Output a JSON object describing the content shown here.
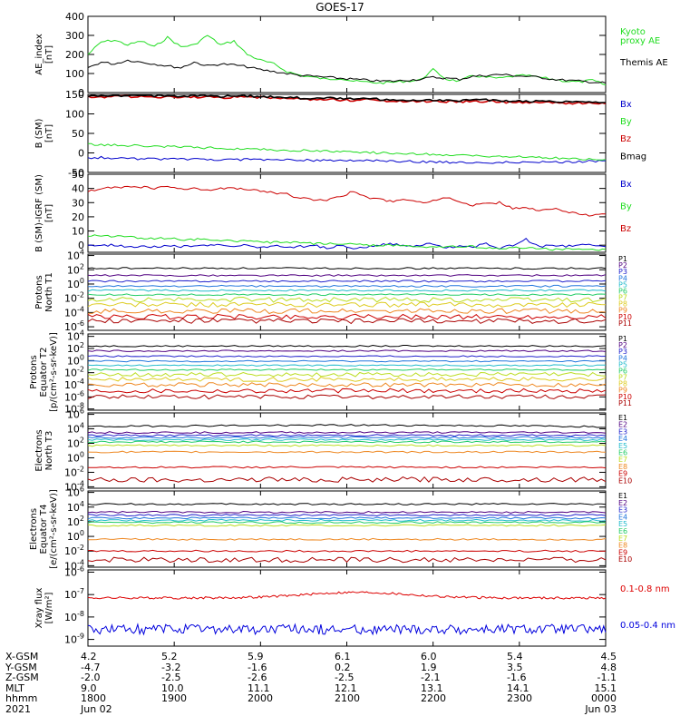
{
  "title": "GOES-17",
  "colors": {
    "axis": "#000000",
    "black": "#000000",
    "green": "#22dd22",
    "blue": "#0000cc",
    "red": "#cc0000",
    "xray_red": "#dd0000",
    "xray_blue": "#0000dd"
  },
  "chart_data": [
    {
      "type": "line",
      "id": "ae",
      "ylabel": [
        "AE_index",
        "[nT]"
      ],
      "ylim": [
        0,
        400
      ],
      "yticks": [
        "400",
        "300",
        "200",
        "100",
        "0"
      ],
      "series": [
        {
          "name": "Kyoto proxy AE",
          "label_lines": [
            "Kyoto",
            "proxy AE"
          ],
          "color": "#22dd22",
          "values": [
            200,
            265,
            275,
            250,
            270,
            240,
            290,
            240,
            250,
            300,
            250,
            270,
            200,
            170,
            150,
            110,
            90,
            80,
            70,
            75,
            60,
            55,
            50,
            55,
            60,
            65,
            120,
            70,
            60,
            90,
            80,
            75,
            85,
            90,
            80,
            70,
            60,
            55,
            65,
            40
          ]
        },
        {
          "name": "Themis AE",
          "label_lines": [
            "Themis AE"
          ],
          "color": "#000000",
          "values": [
            130,
            160,
            150,
            170,
            160,
            150,
            140,
            130,
            160,
            140,
            150,
            145,
            135,
            120,
            110,
            100,
            90,
            85,
            80,
            75,
            70,
            65,
            60,
            60,
            65,
            70,
            80,
            75,
            70,
            85,
            90,
            95,
            90,
            85,
            80,
            70,
            65,
            60,
            55,
            50
          ]
        }
      ]
    },
    {
      "type": "line",
      "id": "b_sm",
      "ylabel": [
        "B (SM)",
        "[nT]"
      ],
      "ylim": [
        -50,
        150
      ],
      "yticks": [
        "150",
        "100",
        "50",
        "0",
        "-50"
      ],
      "series": [
        {
          "name": "Bx",
          "color": "#0000cc",
          "values": [
            -12,
            -12,
            -13,
            -14,
            -15,
            -15,
            -16,
            -16,
            -16,
            -17,
            -17,
            -17,
            -17,
            -18,
            -18,
            -18,
            -18,
            -19,
            -19,
            -19,
            -20,
            -20,
            -20,
            -21,
            -22,
            -22,
            -23,
            -24,
            -23,
            -25,
            -24,
            -24,
            -23,
            -24,
            -23,
            -23,
            -23,
            -22,
            -21,
            -20
          ]
        },
        {
          "name": "By",
          "color": "#22dd22",
          "values": [
            22,
            21,
            20,
            19,
            18,
            17,
            16,
            15,
            14,
            13,
            12,
            11,
            10,
            9,
            8,
            7,
            6,
            5,
            4,
            3,
            2,
            1,
            0,
            -1,
            -2,
            -3,
            -4,
            -5,
            -6,
            -7,
            -8,
            -9,
            -10,
            -11,
            -12,
            -13,
            -14,
            -15,
            -16,
            -17
          ]
        },
        {
          "name": "Bz",
          "color": "#cc0000",
          "values": [
            143,
            144,
            144,
            145,
            145,
            144,
            144,
            143,
            143,
            143,
            142,
            143,
            143,
            142,
            141,
            140,
            138,
            137,
            137,
            136,
            135,
            137,
            134,
            133,
            132,
            133,
            132,
            132,
            131,
            132,
            132,
            131,
            130,
            130,
            130,
            129,
            128,
            128,
            127,
            126
          ]
        },
        {
          "name": "Bmag",
          "color": "#000000",
          "values": [
            146,
            147,
            147,
            148,
            148,
            147,
            147,
            146,
            146,
            146,
            145,
            146,
            146,
            145,
            144,
            143,
            141,
            140,
            140,
            139,
            138,
            140,
            137,
            136,
            135,
            136,
            135,
            135,
            134,
            135,
            135,
            134,
            133,
            133,
            133,
            132,
            131,
            131,
            130,
            129
          ]
        }
      ]
    },
    {
      "type": "line",
      "id": "b_igrf",
      "ylabel": [
        "B (SM)-IGRF (SM)",
        "[nT]"
      ],
      "ylim": [
        -5,
        50
      ],
      "yticks": [
        "50",
        "40",
        "30",
        "20",
        "10",
        "0"
      ],
      "series": [
        {
          "name": "Bx",
          "color": "#0000cc",
          "values": [
            0,
            0,
            0,
            -1,
            -1,
            -1,
            0,
            -1,
            -1,
            0,
            0,
            -1,
            0,
            -2,
            0,
            -2,
            -1,
            0,
            -2,
            0,
            -2,
            -1,
            0,
            1,
            -1,
            0,
            1,
            -2,
            0,
            -1,
            1,
            -2,
            0,
            4,
            -1,
            0,
            -1,
            0,
            0,
            -1
          ]
        },
        {
          "name": "By",
          "color": "#22dd22",
          "values": [
            7,
            7,
            6,
            6,
            5,
            5,
            5,
            4,
            4,
            4,
            3,
            3,
            3,
            2,
            2,
            2,
            2,
            1,
            1,
            1,
            1,
            0,
            0,
            0,
            0,
            -1,
            -1,
            -1,
            -1,
            -1,
            -2,
            -2,
            -2,
            -2,
            -2,
            -3,
            -3,
            -3,
            -3,
            -3
          ]
        },
        {
          "name": "Bz",
          "color": "#cc0000",
          "values": [
            38,
            40,
            41,
            41,
            41,
            40,
            41,
            40,
            40,
            39,
            40,
            40,
            39,
            38,
            37,
            36,
            33,
            32,
            32,
            34,
            38,
            34,
            32,
            31,
            32,
            30,
            31,
            34,
            30,
            28,
            29,
            30,
            26,
            27,
            24,
            26,
            24,
            22,
            21,
            22
          ]
        }
      ]
    },
    {
      "type": "line",
      "id": "protons_t1",
      "ylabel": [
        "Protons",
        "North T1"
      ],
      "ylog": true,
      "yticks": [
        "10^4",
        "10^2",
        "10^0",
        "10^-2",
        "10^-4",
        "10^-6"
      ],
      "series": [
        {
          "name": "P1",
          "color": "#000000",
          "level": 2.2
        },
        {
          "name": "P2",
          "color": "#500080",
          "level": 1.2
        },
        {
          "name": "P3",
          "color": "#2222cc",
          "level": 0.4
        },
        {
          "name": "P4",
          "color": "#2277dd",
          "level": -0.3
        },
        {
          "name": "P5",
          "color": "#22bbcc",
          "level": -0.9
        },
        {
          "name": "P6",
          "color": "#22cc66",
          "level": -1.5
        },
        {
          "name": "P7",
          "color": "#bbdd22",
          "level": -2.2
        },
        {
          "name": "P8",
          "color": "#ddcc22",
          "level": -2.9
        },
        {
          "name": "P9",
          "color": "#ee8822",
          "level": -3.8
        },
        {
          "name": "P10",
          "color": "#cc0000",
          "level": -4.6
        },
        {
          "name": "P11",
          "color": "#aa0000",
          "level": -5.2
        }
      ]
    },
    {
      "type": "line",
      "id": "protons_t2",
      "ylabel": [
        "Protons",
        "Equator T2",
        "[p/(cm²-s-sr-keV)]"
      ],
      "ylog": true,
      "yticks": [
        "10^4",
        "10^2",
        "10^0",
        "10^-2",
        "10^-4",
        "10^-6",
        "10^-8"
      ],
      "series": [
        {
          "name": "P1",
          "color": "#000000",
          "level": 2.4
        },
        {
          "name": "P2",
          "color": "#500080",
          "level": 1.6
        },
        {
          "name": "P3",
          "color": "#2222cc",
          "level": 0.7
        },
        {
          "name": "P4",
          "color": "#2277dd",
          "level": -0.1
        },
        {
          "name": "P5",
          "color": "#22bbcc",
          "level": -0.8
        },
        {
          "name": "P6",
          "color": "#22cc66",
          "level": -1.5
        },
        {
          "name": "P7",
          "color": "#bbdd22",
          "level": -2.3
        },
        {
          "name": "P8",
          "color": "#ddcc22",
          "level": -3.1
        },
        {
          "name": "P9",
          "color": "#ee8822",
          "level": -4.0
        },
        {
          "name": "P10",
          "color": "#cc0000",
          "level": -5.0
        },
        {
          "name": "P11",
          "color": "#aa0000",
          "level": -6.0
        }
      ]
    },
    {
      "type": "line",
      "id": "electrons_t3",
      "ylabel": [
        "Electrons",
        "North T3"
      ],
      "ylog": true,
      "yticks": [
        "10^6",
        "10^4",
        "10^2",
        "10^0",
        "10^-2",
        "10^-4"
      ],
      "series": [
        {
          "name": "E1",
          "color": "#000000",
          "level": 4.3
        },
        {
          "name": "E2",
          "color": "#500080",
          "level": 3.5
        },
        {
          "name": "E3",
          "color": "#2222cc",
          "level": 3.1
        },
        {
          "name": "E4",
          "color": "#2277dd",
          "level": 2.8
        },
        {
          "name": "E5",
          "color": "#22bbcc",
          "level": 2.5
        },
        {
          "name": "E6",
          "color": "#22cc66",
          "level": 2.2
        },
        {
          "name": "E7",
          "color": "#bbdd22",
          "level": 1.7
        },
        {
          "name": "E8",
          "color": "#ee8822",
          "level": 0.8
        },
        {
          "name": "E9",
          "color": "#cc0000",
          "level": -1.3
        },
        {
          "name": "E10",
          "color": "#aa0000",
          "level": -3.0
        }
      ]
    },
    {
      "type": "line",
      "id": "electrons_t4",
      "ylabel": [
        "Electrons",
        "Equator T4",
        "[e/(cm²-s-sr-keV)]"
      ],
      "ylog": true,
      "yticks": [
        "10^6",
        "10^4",
        "10^2",
        "10^0",
        "10^-2",
        "10^-4"
      ],
      "series": [
        {
          "name": "E1",
          "color": "#000000",
          "level": 4.4
        },
        {
          "name": "E2",
          "color": "#500080",
          "level": 3.3
        },
        {
          "name": "E3",
          "color": "#2222cc",
          "level": 2.9
        },
        {
          "name": "E4",
          "color": "#2277dd",
          "level": 2.5
        },
        {
          "name": "E5",
          "color": "#22bbcc",
          "level": 2.2
        },
        {
          "name": "E6",
          "color": "#22cc66",
          "level": 1.9
        },
        {
          "name": "E7",
          "color": "#bbdd22",
          "level": 1.5
        },
        {
          "name": "E8",
          "color": "#ee8822",
          "level": -0.4
        },
        {
          "name": "E9",
          "color": "#cc0000",
          "level": -2.0
        },
        {
          "name": "E10",
          "color": "#aa0000",
          "level": -3.2
        }
      ]
    },
    {
      "type": "line",
      "id": "xray",
      "ylabel": [
        "Xray flux",
        "[W/m²]"
      ],
      "ylog": true,
      "yticks": [
        "10^-6",
        "10^-7",
        "10^-8",
        "10^-9"
      ],
      "series": [
        {
          "name": "0.1-0.8 nm",
          "color": "#dd0000",
          "level": -7.15
        },
        {
          "name": "0.05-0.4 nm",
          "color": "#0000dd",
          "level": -8.55
        }
      ]
    }
  ],
  "x_axis": {
    "row_labels": [
      "X-GSM",
      "Y-GSM",
      "Z-GSM",
      "MLT",
      "hhmm",
      "2021"
    ],
    "columns": [
      {
        "values": [
          "4.2",
          "-4.7",
          "-2.0",
          "9.0",
          "1800",
          "Jun 02"
        ]
      },
      {
        "values": [
          "5.2",
          "-3.2",
          "-2.5",
          "10.0",
          "1900",
          ""
        ]
      },
      {
        "values": [
          "5.9",
          "-1.6",
          "-2.6",
          "11.1",
          "2000",
          ""
        ]
      },
      {
        "values": [
          "6.1",
          "0.2",
          "-2.5",
          "12.1",
          "2100",
          ""
        ]
      },
      {
        "values": [
          "6.0",
          "1.9",
          "-2.1",
          "13.1",
          "2200",
          ""
        ]
      },
      {
        "values": [
          "5.4",
          "3.5",
          "-1.6",
          "14.1",
          "2300",
          ""
        ]
      },
      {
        "values": [
          "4.5",
          "4.8",
          "-1.1",
          "15.1",
          "0000",
          "Jun 03"
        ]
      }
    ]
  }
}
